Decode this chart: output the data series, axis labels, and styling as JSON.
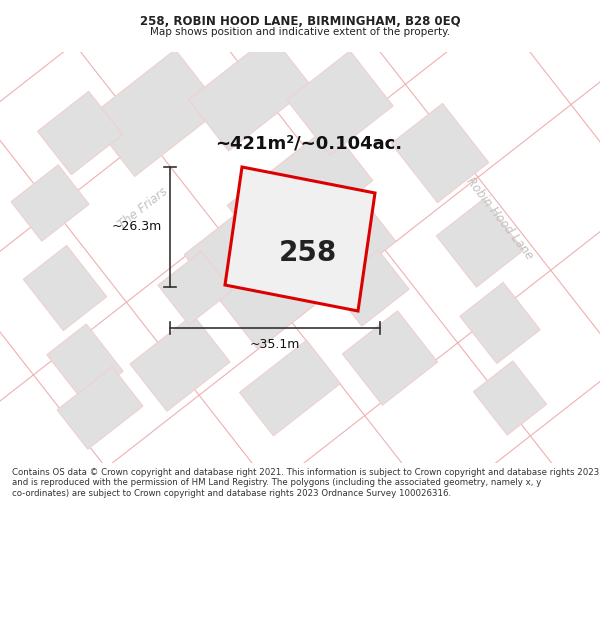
{
  "title_line1": "258, ROBIN HOOD LANE, BIRMINGHAM, B28 0EQ",
  "title_line2": "Map shows position and indicative extent of the property.",
  "footer_text": "Contains OS data © Crown copyright and database right 2021. This information is subject to Crown copyright and database rights 2023 and is reproduced with the permission of HM Land Registry. The polygons (including the associated geometry, namely x, y co-ordinates) are subject to Crown copyright and database rights 2023 Ordnance Survey 100026316.",
  "area_label": "~421m²/~0.104ac.",
  "property_number": "258",
  "width_label": "~35.1m",
  "height_label": "~26.3m",
  "map_bg": "#f5f5f5",
  "block_fill": "#e0e0e0",
  "block_stroke": "#f0d0d0",
  "property_fill": "#f0f0f0",
  "property_stroke": "#dd0000",
  "road_label_color": "#c0c0c0",
  "title_color": "#222222",
  "footer_color": "#333333",
  "dim_color": "#333333",
  "road_line_color": "#f0b0b0",
  "road_line_color2": "#f8d8d8"
}
